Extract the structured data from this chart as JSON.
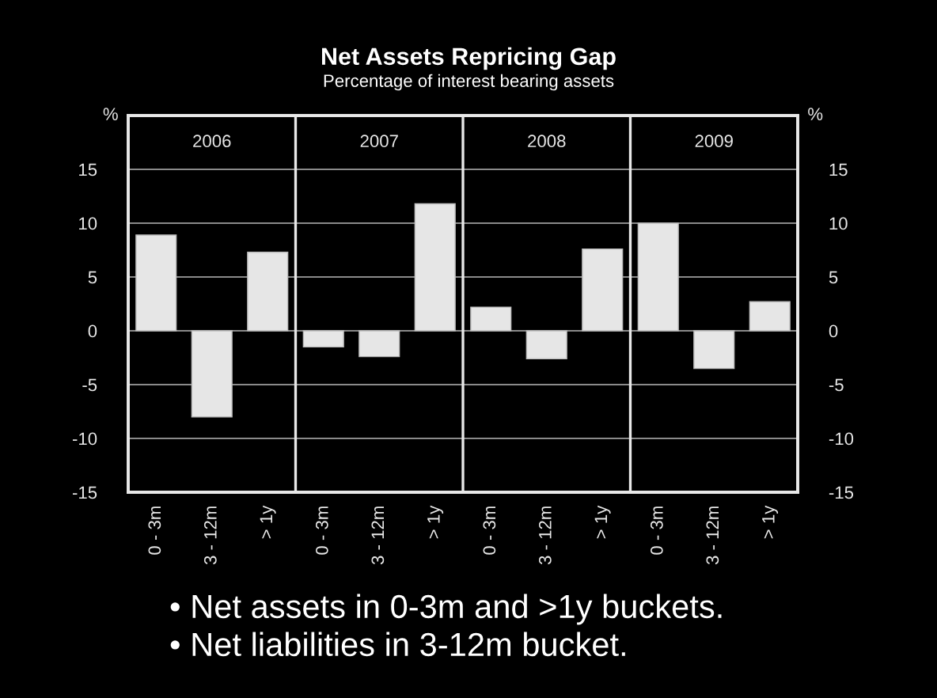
{
  "chart_data": {
    "type": "bar",
    "title": "Net Assets Repricing Gap",
    "subtitle": "Percentage of interest bearing assets",
    "annotations": [
      "• Net assets in 0-3m and >1y buckets.",
      "• Net liabilities in 3-12m bucket."
    ],
    "ylabel": "%",
    "y2label": "%",
    "categories": [
      "0 - 3m",
      "3 - 12m",
      "> 1y",
      "0 - 3m",
      "3 - 12m",
      "> 1y",
      "0 - 3m",
      "3 - 12m",
      "> 1y",
      "0 - 3m",
      "3 - 12m",
      "> 1y"
    ],
    "values": [
      8.9,
      -8.0,
      7.3,
      -1.5,
      -2.4,
      11.8,
      2.2,
      -2.6,
      7.6,
      10.0,
      -3.5,
      2.7
    ],
    "color": "#e6e6e6",
    "ylim": [
      -15,
      20
    ],
    "yticks": [
      -15,
      -10,
      -5,
      0,
      5,
      10,
      15
    ],
    "y2lim": [
      -15,
      20
    ],
    "y2ticks": [
      -15,
      -10,
      -5,
      0,
      5,
      10,
      15
    ],
    "x2lim": [
      2005.5,
      2009.5
    ],
    "x2ticks": [
      2006,
      {
        "value": 2006.5,
        "label": null
      },
      2007,
      {
        "value": 2007.5,
        "label": null
      },
      2008,
      {
        "value": 2008.5,
        "label": null
      },
      2009
    ],
    "grid": true,
    "legend": false
  }
}
